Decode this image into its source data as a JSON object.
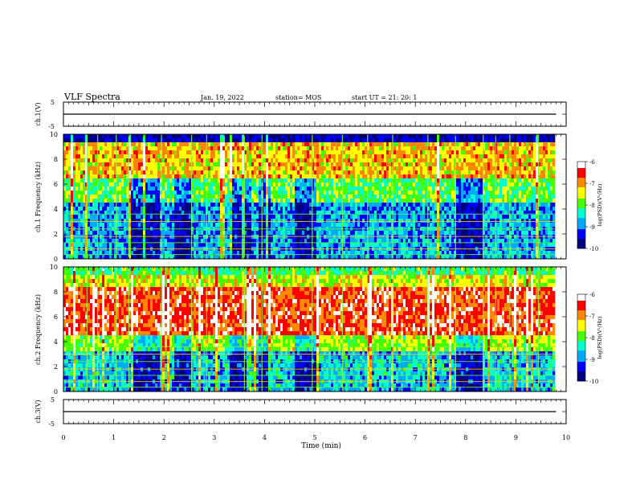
{
  "header": {
    "title": "VLF Spectra",
    "date": "Jan. 19, 2022",
    "station": "station= MOS",
    "start": "start  UT =  21: 20: 1"
  },
  "colors": {
    "scale": [
      "#000080",
      "#0000ff",
      "#00aaff",
      "#00ffcc",
      "#44ff00",
      "#ffff00",
      "#ff8800",
      "#ff0000",
      "#ffffff"
    ]
  },
  "chart_data": [
    {
      "type": "line",
      "panel": "ch1-voltage",
      "ylabel": "ch.1(V)",
      "ylim": [
        -5,
        5
      ],
      "yticks": [
        "5",
        "-5"
      ],
      "xlim": [
        0,
        10
      ],
      "series": [
        {
          "x": [
            0,
            9.8
          ],
          "values": [
            0,
            0
          ]
        }
      ]
    },
    {
      "type": "heatmap",
      "panel": "ch1-spectrogram",
      "ylabel": "ch.1 Frequency (kHz)",
      "ylim": [
        0,
        10
      ],
      "yticks": [
        "0",
        "2",
        "4",
        "6",
        "8",
        "10"
      ],
      "xlim": [
        0,
        10
      ],
      "data_end_min": 9.8,
      "colorbar": {
        "label": "log(PSD)(V²/Hz)",
        "range": [
          -10,
          -6
        ],
        "ticks": [
          "-6",
          "-7",
          "-8",
          "-9",
          "-10"
        ]
      },
      "quiet_bands_min": [
        [
          1.3,
          1.9
        ],
        [
          2.2,
          2.5
        ],
        [
          3.3,
          3.7
        ],
        [
          3.85,
          4.1
        ],
        [
          4.6,
          5.0
        ],
        [
          7.8,
          8.3
        ]
      ],
      "strong_band_khz": [
        6.5,
        9.2
      ]
    },
    {
      "type": "heatmap",
      "panel": "ch2-spectrogram",
      "ylabel": "ch.2 Frequency (kHz)",
      "ylim": [
        0,
        10
      ],
      "yticks": [
        "0",
        "2",
        "4",
        "6",
        "8",
        "10"
      ],
      "xlim": [
        0,
        10
      ],
      "data_end_min": 9.8,
      "colorbar": {
        "label": "log(PSD)(V²/Hz)",
        "range": [
          -10,
          -6
        ],
        "ticks": [
          "-6",
          "-7",
          "-8",
          "-9",
          "-10"
        ]
      },
      "quiet_bands_min": [
        [
          1.3,
          1.9
        ],
        [
          2.2,
          2.5
        ],
        [
          3.3,
          3.7
        ],
        [
          3.85,
          4.1
        ],
        [
          4.6,
          5.0
        ],
        [
          7.8,
          8.3
        ]
      ],
      "strong_band_khz": [
        4.5,
        8.5
      ]
    },
    {
      "type": "line",
      "panel": "ch3-voltage",
      "ylabel": "ch.3(V)",
      "ylim": [
        -5,
        5
      ],
      "yticks": [
        "5",
        "-5"
      ],
      "xlim": [
        0,
        10
      ],
      "series": [
        {
          "x": [
            0,
            9.8
          ],
          "values": [
            0,
            0
          ]
        }
      ]
    }
  ],
  "xaxis": {
    "label": "Time  (min)",
    "ticks": [
      "0",
      "1",
      "2",
      "3",
      "4",
      "5",
      "6",
      "7",
      "8",
      "9",
      "10"
    ]
  }
}
